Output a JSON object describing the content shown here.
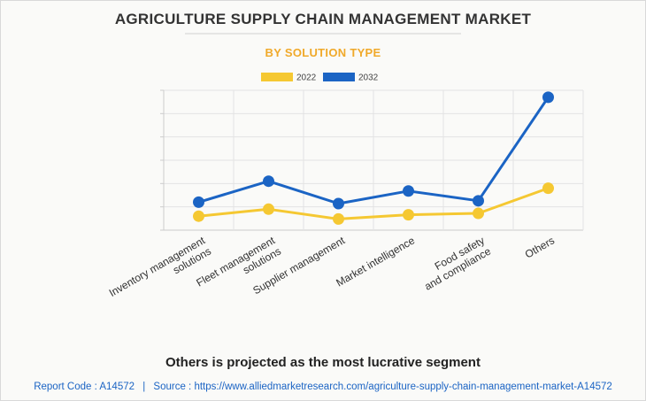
{
  "title": "AGRICULTURE SUPPLY CHAIN MANAGEMENT MARKET",
  "subtitle": "BY SOLUTION TYPE",
  "colors": {
    "subtitle": "#f0a92a",
    "series_2022": "#f5c832",
    "series_2032": "#1b64c4",
    "grid": "#e3e3e3",
    "axis": "#cccccc",
    "source": "#1b64c4"
  },
  "chart_data": {
    "type": "line",
    "categories": [
      [
        "Inventory management",
        "solutions"
      ],
      [
        "Fleet management",
        "solutions"
      ],
      [
        "Supplier management"
      ],
      [
        "Market intelligence"
      ],
      [
        "Food safety",
        "and compliance"
      ],
      [
        "Others"
      ]
    ],
    "series": [
      {
        "name": "2022",
        "values": [
          1.0,
          1.5,
          0.8,
          1.1,
          1.2,
          3.0
        ]
      },
      {
        "name": "2032",
        "values": [
          2.0,
          3.5,
          1.9,
          2.8,
          2.1,
          9.5
        ]
      }
    ],
    "ylim": [
      0,
      10
    ],
    "grid": "horizontal",
    "legend_position": "top-center",
    "x_label_rotation": -30
  },
  "footnote": "Others is projected as the most lucrative segment",
  "source_line": {
    "report_code": "Report Code : A14572",
    "separator": "|",
    "source": "Source : https://www.alliedmarketresearch.com/agriculture-supply-chain-management-market-A14572"
  }
}
